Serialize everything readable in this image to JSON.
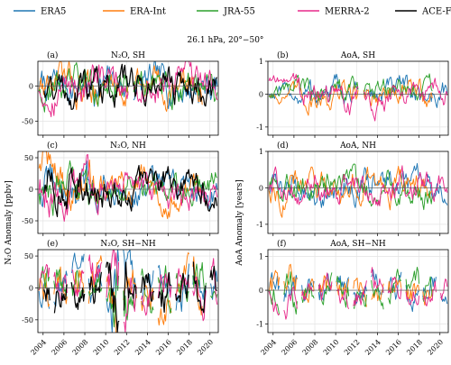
{
  "suptitle": "26.1 hPa, 20°−50°",
  "legend": [
    {
      "name": "ERA5",
      "color": "#1f77b4"
    },
    {
      "name": "ERA-Int",
      "color": "#ff7f0e"
    },
    {
      "name": "JRA-55",
      "color": "#2ca02c"
    },
    {
      "name": "MERRA-2",
      "color": "#e7298a"
    },
    {
      "name": "ACE-FTS",
      "color": "#000000"
    }
  ],
  "left_ylabel": "N₂O Anomaly [ppbv]",
  "right_ylabel": "AoA Anomaly [years]",
  "chart_data": [
    {
      "type": "line",
      "letter": "(a)",
      "title": "N₂O, SH",
      "x_range": [
        2003.5,
        2020.8
      ],
      "ylim": [
        -70,
        35
      ],
      "yticks": [
        -50,
        0
      ],
      "xticks": [
        2004,
        2006,
        2008,
        2010,
        2012,
        2014,
        2016,
        2018,
        2020
      ],
      "grid": true,
      "series": [
        "ERA5",
        "ERA-Int",
        "JRA-55",
        "MERRA-2",
        "ACE-FTS"
      ]
    },
    {
      "type": "line",
      "letter": "(b)",
      "title": "AoA, SH",
      "x_range": [
        2003.5,
        2020.8
      ],
      "ylim": [
        -1.25,
        1.0
      ],
      "yticks": [
        -1,
        0,
        1
      ],
      "xticks": [
        2004,
        2006,
        2008,
        2010,
        2012,
        2014,
        2016,
        2018,
        2020
      ],
      "grid": true,
      "series": [
        "ERA5",
        "ERA-Int",
        "JRA-55",
        "MERRA-2"
      ]
    },
    {
      "type": "line",
      "letter": "(c)",
      "title": "N₂O, NH",
      "x_range": [
        2003.5,
        2020.8
      ],
      "ylim": [
        -70,
        60
      ],
      "yticks": [
        -50,
        0,
        50
      ],
      "xticks": [
        2004,
        2006,
        2008,
        2010,
        2012,
        2014,
        2016,
        2018,
        2020
      ],
      "grid": true,
      "series": [
        "ERA5",
        "ERA-Int",
        "JRA-55",
        "MERRA-2",
        "ACE-FTS"
      ]
    },
    {
      "type": "line",
      "letter": "(d)",
      "title": "AoA, NH",
      "x_range": [
        2003.5,
        2020.8
      ],
      "ylim": [
        -1.25,
        1.0
      ],
      "yticks": [
        -1,
        0,
        1
      ],
      "xticks": [
        2004,
        2006,
        2008,
        2010,
        2012,
        2014,
        2016,
        2018,
        2020
      ],
      "grid": true,
      "series": [
        "ERA5",
        "ERA-Int",
        "JRA-55",
        "MERRA-2"
      ]
    },
    {
      "type": "line",
      "letter": "(e)",
      "title": "N₂O, SH−NH",
      "x_range": [
        2003.5,
        2020.8
      ],
      "ylim": [
        -70,
        60
      ],
      "yticks": [
        -50,
        0,
        50
      ],
      "xticks": [
        2004,
        2006,
        2008,
        2010,
        2012,
        2014,
        2016,
        2018,
        2020
      ],
      "xtick_labels": [
        "2004",
        "2006",
        "2008",
        "2010",
        "2012",
        "2014",
        "2016",
        "2018",
        "2020"
      ],
      "grid": true,
      "series": [
        "ERA5",
        "ERA-Int",
        "JRA-55",
        "MERRA-2",
        "ACE-FTS"
      ]
    },
    {
      "type": "line",
      "letter": "(f)",
      "title": "AoA, SH−NH",
      "x_range": [
        2003.5,
        2020.8
      ],
      "ylim": [
        -1.25,
        1.2
      ],
      "yticks": [
        -1,
        0,
        1
      ],
      "xticks": [
        2004,
        2006,
        2008,
        2010,
        2012,
        2014,
        2016,
        2018,
        2020
      ],
      "xtick_labels": [
        "2004",
        "2006",
        "2008",
        "2010",
        "2012",
        "2014",
        "2016",
        "2018",
        "2020"
      ],
      "grid": true,
      "series": [
        "ERA5",
        "ERA-Int",
        "JRA-55",
        "MERRA-2"
      ]
    }
  ]
}
